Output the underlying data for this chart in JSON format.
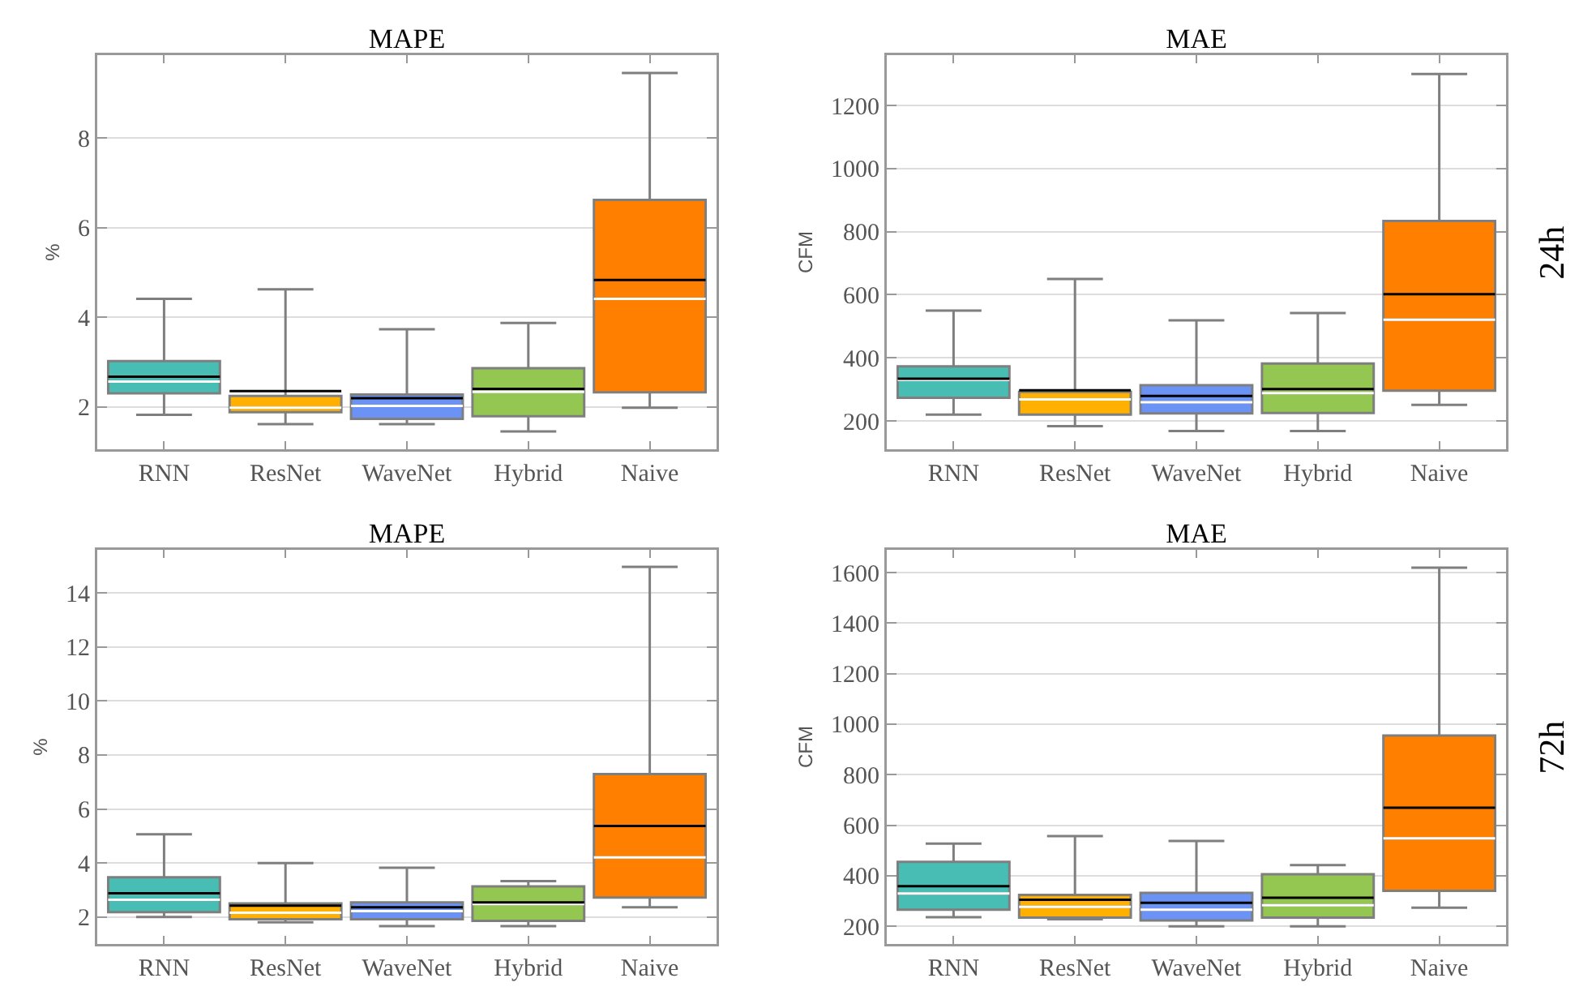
{
  "chart_data": [
    {
      "type": "box",
      "title": "MAPE",
      "ylabel": "%",
      "categories": [
        "RNN",
        "ResNet",
        "WaveNet",
        "Hybrid",
        "Naive"
      ],
      "colors": [
        "#48bdb4",
        "#ffb000",
        "#6b93f5",
        "#94c752",
        "#ff8000"
      ],
      "ylim": [
        1.05,
        9.85
      ],
      "yticks": [
        2,
        4,
        6,
        8
      ],
      "grid": "y",
      "boxes": [
        {
          "low": 1.82,
          "q1": 2.3,
          "median": 2.56,
          "q3": 3.02,
          "high": 4.41,
          "mean": 2.67
        },
        {
          "low": 1.61,
          "q1": 1.88,
          "median": 1.98,
          "q3": 2.24,
          "high": 4.62,
          "mean": 2.35
        },
        {
          "low": 1.61,
          "q1": 1.73,
          "median": 2.02,
          "q3": 2.27,
          "high": 3.73,
          "mean": 2.19
        },
        {
          "low": 1.45,
          "q1": 1.79,
          "median": 2.33,
          "q3": 2.86,
          "high": 3.87,
          "mean": 2.4
        },
        {
          "low": 1.98,
          "q1": 2.32,
          "median": 4.41,
          "q3": 6.62,
          "high": 9.45,
          "mean": 4.83
        }
      ]
    },
    {
      "type": "box",
      "title": "MAE",
      "ylabel": "CFM",
      "annotations": [
        "24h"
      ],
      "categories": [
        "RNN",
        "ResNet",
        "WaveNet",
        "Hybrid",
        "Naive"
      ],
      "colors": [
        "#48bdb4",
        "#ffb000",
        "#6b93f5",
        "#94c752",
        "#ff8000"
      ],
      "ylim": [
        110,
        1360
      ],
      "yticks": [
        200,
        400,
        600,
        800,
        1000,
        1200
      ],
      "grid": "y",
      "boxes": [
        {
          "low": 220,
          "q1": 273,
          "median": 330,
          "q3": 373,
          "high": 550,
          "mean": 334
        },
        {
          "low": 183,
          "q1": 220,
          "median": 268,
          "q3": 292,
          "high": 650,
          "mean": 297
        },
        {
          "low": 168,
          "q1": 224,
          "median": 259,
          "q3": 313,
          "high": 519,
          "mean": 279
        },
        {
          "low": 168,
          "q1": 225,
          "median": 288,
          "q3": 382,
          "high": 542,
          "mean": 301
        },
        {
          "low": 251,
          "q1": 296,
          "median": 521,
          "q3": 834,
          "high": 1300,
          "mean": 602
        }
      ]
    },
    {
      "type": "box",
      "title": "MAPE",
      "ylabel": "%",
      "categories": [
        "RNN",
        "ResNet",
        "WaveNet",
        "Hybrid",
        "Naive"
      ],
      "colors": [
        "#48bdb4",
        "#ffb000",
        "#6b93f5",
        "#94c752",
        "#ff8000"
      ],
      "ylim": [
        1,
        15.6
      ],
      "yticks": [
        2,
        4,
        6,
        8,
        10,
        12,
        14
      ],
      "grid": "y",
      "boxes": [
        {
          "low": 2.0,
          "q1": 2.18,
          "median": 2.64,
          "q3": 3.47,
          "high": 5.06,
          "mean": 2.88
        },
        {
          "low": 1.8,
          "q1": 1.92,
          "median": 2.16,
          "q3": 2.5,
          "high": 4.0,
          "mean": 2.42
        },
        {
          "low": 1.66,
          "q1": 1.92,
          "median": 2.22,
          "q3": 2.54,
          "high": 3.82,
          "mean": 2.36
        },
        {
          "low": 1.66,
          "q1": 1.86,
          "median": 2.48,
          "q3": 3.13,
          "high": 3.33,
          "mean": 2.54
        },
        {
          "low": 2.36,
          "q1": 2.72,
          "median": 4.21,
          "q3": 7.29,
          "high": 14.97,
          "mean": 5.37
        }
      ]
    },
    {
      "type": "box",
      "title": "MAE",
      "ylabel": "CFM",
      "annotations": [
        "72h"
      ],
      "categories": [
        "RNN",
        "ResNet",
        "WaveNet",
        "Hybrid",
        "Naive"
      ],
      "colors": [
        "#48bdb4",
        "#ffb000",
        "#6b93f5",
        "#94c752",
        "#ff8000"
      ],
      "ylim": [
        130,
        1690
      ],
      "yticks": [
        200,
        400,
        600,
        800,
        1000,
        1200,
        1400,
        1600
      ],
      "grid": "y",
      "boxes": [
        {
          "low": 236,
          "q1": 266,
          "median": 330,
          "q3": 455,
          "high": 527,
          "mean": 359
        },
        {
          "low": 228,
          "q1": 234,
          "median": 277,
          "q3": 324,
          "high": 557,
          "mean": 305
        },
        {
          "low": 200,
          "q1": 223,
          "median": 266,
          "q3": 332,
          "high": 538,
          "mean": 293
        },
        {
          "low": 200,
          "q1": 234,
          "median": 283,
          "q3": 406,
          "high": 442,
          "mean": 313
        },
        {
          "low": 274,
          "q1": 340,
          "median": 548,
          "q3": 955,
          "high": 1619,
          "mean": 669
        }
      ]
    }
  ]
}
